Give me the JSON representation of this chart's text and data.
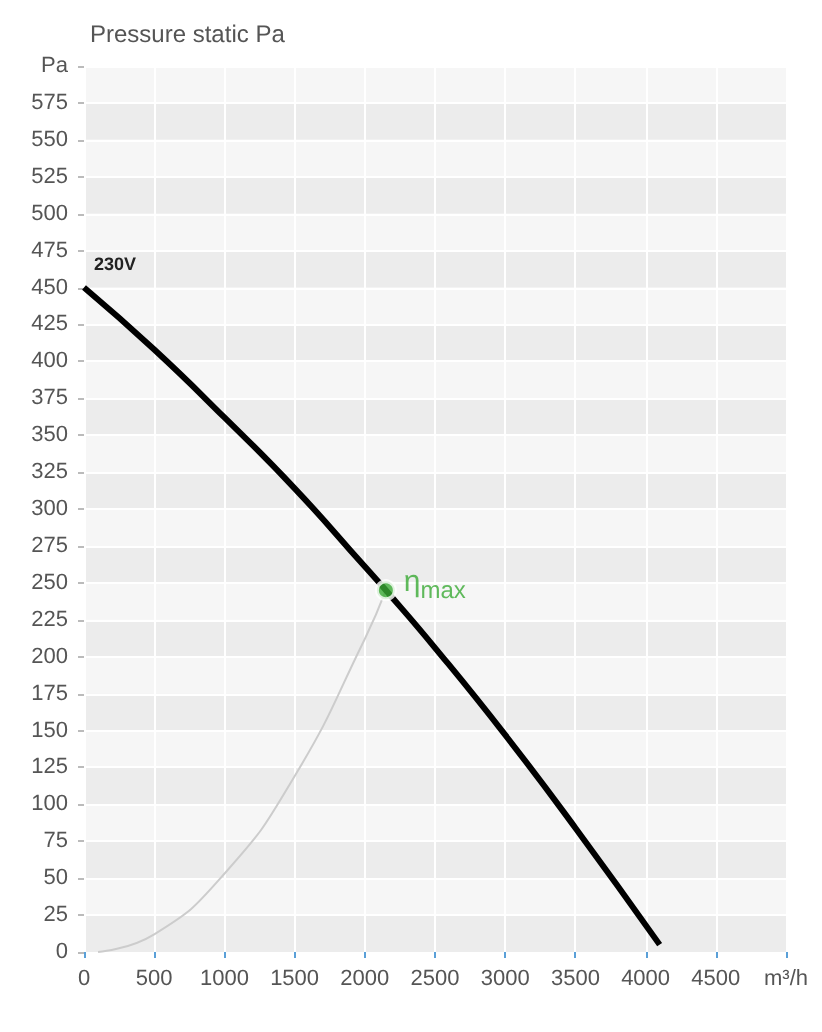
{
  "chart_data": {
    "type": "line",
    "title": "Pressure static Pa",
    "xlim": [
      0,
      5000
    ],
    "xticks": [
      0,
      500,
      1000,
      1500,
      2000,
      2500,
      3000,
      3500,
      4000,
      4500,
      {
        "value": 5000,
        "label": "m³/h"
      }
    ],
    "ylim": [
      0,
      600
    ],
    "yticks": [
      0,
      25,
      50,
      75,
      100,
      125,
      150,
      175,
      200,
      225,
      250,
      275,
      300,
      325,
      350,
      375,
      400,
      425,
      450,
      475,
      500,
      525,
      550,
      575,
      {
        "value": 600,
        "label": "Pa"
      }
    ],
    "grid": true,
    "legend": false,
    "marker": "none",
    "series": [
      {
        "name": "230V",
        "color": "#000000",
        "x": [
          0,
          500,
          1000,
          1500,
          2000,
          2150,
          2500,
          3000,
          3500,
          4100
        ],
        "values": [
          450,
          408,
          362,
          314,
          261,
          245,
          206,
          147,
          84,
          5
        ]
      },
      {
        "color": "#cccccc",
        "x": [
          100,
          500,
          1000,
          1500,
          2000,
          2150
        ],
        "values": [
          0,
          12,
          53,
          119,
          212,
          245
        ]
      },
      {
        "type": "scatter",
        "marker": "circle",
        "color": "#3aaa35",
        "x": [
          2150
        ],
        "values": [
          245
        ]
      }
    ],
    "annotations": [
      {
        "text": "η$_{max}$",
        "x": 2150,
        "y": 245
      }
    ]
  }
}
